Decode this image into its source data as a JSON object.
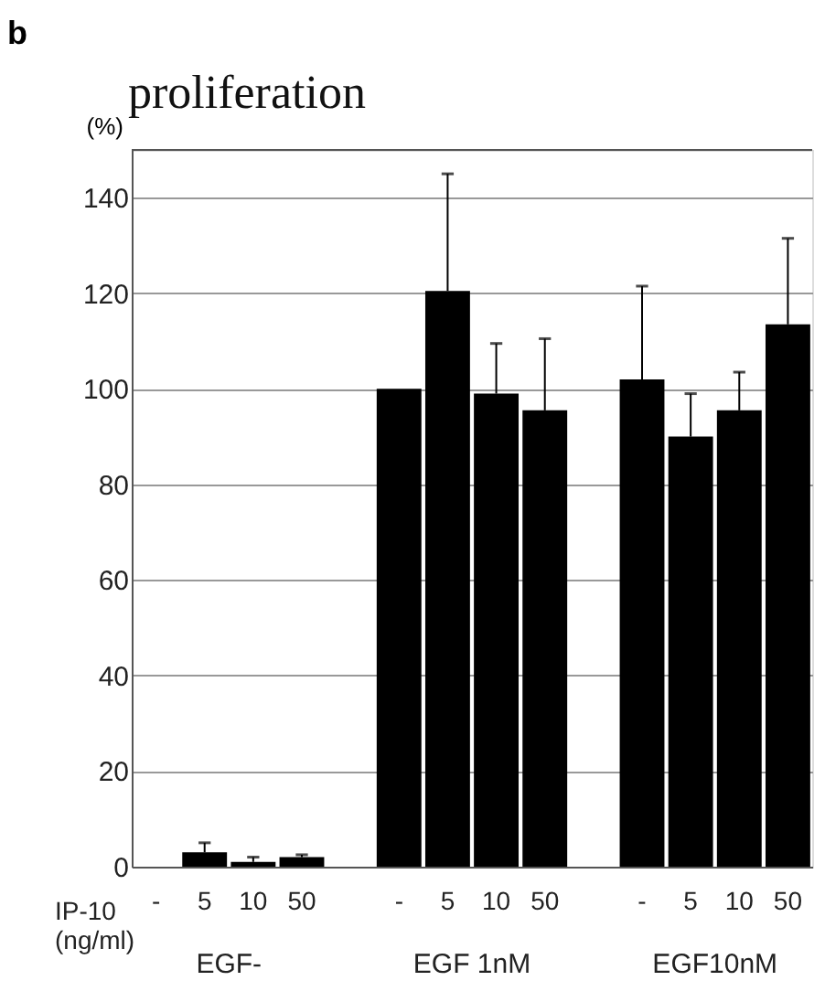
{
  "chart_data": {
    "type": "bar",
    "title": "proliferation",
    "ylabel": "(%)",
    "categories": [
      "-",
      "5",
      "10",
      "50",
      "-",
      "5",
      "10",
      "50",
      "-",
      "5",
      "10",
      "50"
    ],
    "values": [
      0,
      3,
      1,
      2,
      100,
      120.5,
      99,
      95.5,
      102,
      90,
      95.5,
      113.5
    ],
    "errors": [
      null,
      [
        3,
        5
      ],
      [
        1,
        2
      ],
      [
        2,
        2.5
      ],
      null,
      [
        120.5,
        145
      ],
      [
        99,
        109.5
      ],
      [
        95.5,
        110.5
      ],
      [
        102,
        121.5
      ],
      [
        90,
        99
      ],
      [
        95.5,
        103.5
      ],
      [
        113.5,
        131.5
      ]
    ],
    "color": "#000000",
    "ylim": [
      0,
      150
    ],
    "yticks": [
      0,
      20,
      40,
      60,
      80,
      100,
      120,
      140
    ],
    "grid": "y",
    "annotations": [
      "b",
      "IP-10 (ng/ml)",
      "EGF-",
      "EGF 1nM",
      "EGF10nM"
    ]
  }
}
